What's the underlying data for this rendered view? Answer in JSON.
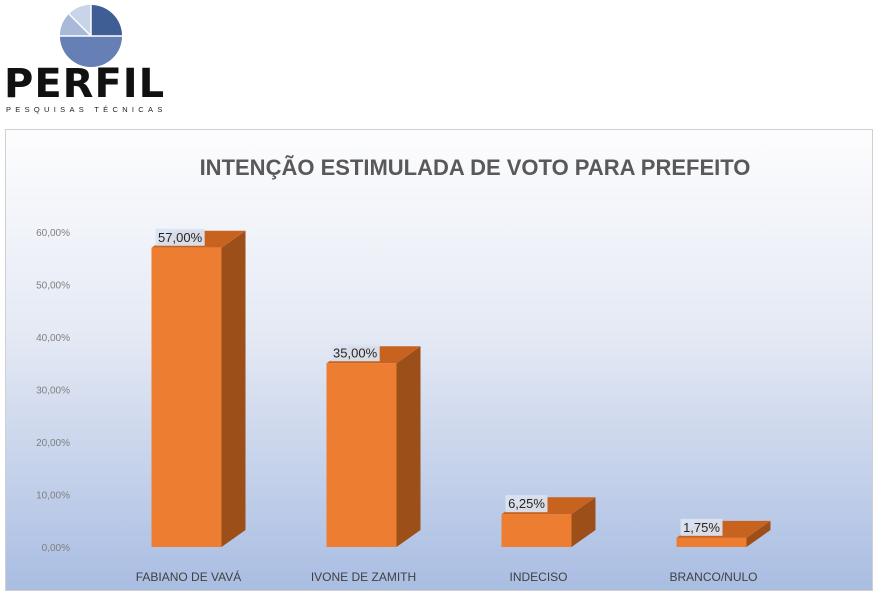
{
  "brand": {
    "name": "PERFIL",
    "tagline": "PESQUISAS TÉCNICAS",
    "logo_icon": "pie-chart-logo-icon",
    "colors": [
      "#3f5e93",
      "#7d95c2",
      "#a9b9d9",
      "#c9d4e8"
    ]
  },
  "chart_data": {
    "type": "bar",
    "style": "3d-column",
    "title": "INTENÇÃO ESTIMULADA DE VOTO PARA PREFEITO",
    "categories": [
      "FABIANO DE VAVÁ",
      "IVONE DE ZAMITH",
      "INDECISO",
      "BRANCO/NULO"
    ],
    "values": [
      57.0,
      35.0,
      6.25,
      1.75
    ],
    "data_labels": [
      "57,00%",
      "35,00%",
      "6,25%",
      "1,75%"
    ],
    "ylim": [
      0,
      60
    ],
    "yticks": [
      0,
      10,
      20,
      30,
      40,
      50,
      60
    ],
    "ytick_labels": [
      "0,00%",
      "10,00%",
      "20,00%",
      "30,00%",
      "40,00%",
      "50,00%",
      "60,00%"
    ],
    "xlabel": "",
    "ylabel": "",
    "grid": false,
    "legend": "none",
    "colors": {
      "bar_front": "#ed7d31",
      "bar_side": "#9c4f19",
      "bar_top": "#c8621f"
    }
  }
}
